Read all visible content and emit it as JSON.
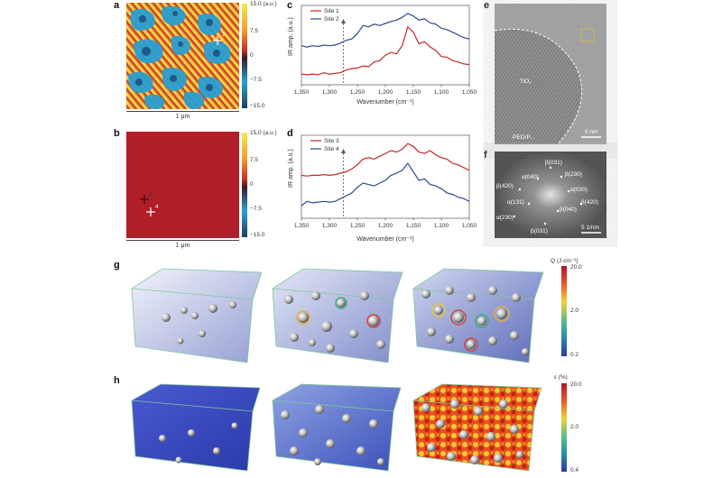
{
  "panels": {
    "a": {
      "label": "a",
      "scalebar": "1 μm",
      "colorbar": {
        "ticks": [
          "15.0 (a.u.)",
          "7.5",
          "0",
          "−7.5",
          "−15.0"
        ]
      },
      "marker": "1",
      "colors": [
        "#f7e84a",
        "#f0a030",
        "#d03020",
        "#3a1a2a",
        "#2aa0d0",
        "#1a4a7a"
      ]
    },
    "b": {
      "label": "b",
      "scalebar": "1 μm",
      "colorbar": {
        "ticks": [
          "15.0 (a.u.)",
          "7.5",
          "0",
          "−7.5",
          "−15.0"
        ]
      },
      "markers": [
        "3",
        "4"
      ],
      "fill": "#b01e28"
    },
    "c": {
      "label": "c",
      "chart_data": {
        "type": "line",
        "xlabel": "Wavenumber (cm⁻¹)",
        "ylabel": "IR amp. (a.u.)",
        "x_ticks": [
          "1,350",
          "1,300",
          "1,250",
          "1,200",
          "1,150",
          "1,100",
          "1,050"
        ],
        "xlim": [
          1350,
          1050
        ],
        "marker_x": 1275,
        "series": [
          {
            "name": "Site 1",
            "color": "#c0282c",
            "x": [
              1350,
              1340,
              1330,
              1320,
              1310,
              1300,
              1290,
              1280,
              1270,
              1260,
              1250,
              1240,
              1230,
              1220,
              1210,
              1200,
              1190,
              1180,
              1170,
              1160,
              1150,
              1140,
              1130,
              1120,
              1110,
              1100,
              1090,
              1080,
              1070,
              1060,
              1050
            ],
            "y": [
              0.1,
              0.09,
              0.1,
              0.09,
              0.12,
              0.1,
              0.11,
              0.12,
              0.16,
              0.18,
              0.19,
              0.22,
              0.21,
              0.28,
              0.3,
              0.38,
              0.42,
              0.4,
              0.52,
              0.8,
              0.72,
              0.55,
              0.58,
              0.5,
              0.45,
              0.36,
              0.35,
              0.3,
              0.28,
              0.25,
              0.24
            ]
          },
          {
            "name": "Site 2",
            "color": "#2c4a8c",
            "x": [
              1350,
              1340,
              1330,
              1320,
              1310,
              1300,
              1290,
              1280,
              1270,
              1260,
              1250,
              1240,
              1230,
              1220,
              1210,
              1200,
              1190,
              1180,
              1170,
              1160,
              1150,
              1140,
              1130,
              1120,
              1110,
              1100,
              1090,
              1080,
              1070,
              1060,
              1050
            ],
            "y": [
              0.52,
              0.5,
              0.52,
              0.51,
              0.53,
              0.52,
              0.53,
              0.56,
              0.6,
              0.62,
              0.7,
              0.82,
              0.8,
              0.84,
              0.82,
              0.85,
              0.88,
              0.9,
              0.94,
              1.0,
              0.96,
              0.9,
              0.92,
              0.86,
              0.84,
              0.78,
              0.76,
              0.72,
              0.68,
              0.64,
              0.62
            ]
          }
        ]
      }
    },
    "d": {
      "label": "d",
      "chart_data": {
        "type": "line",
        "xlabel": "Wavenumber (cm⁻¹)",
        "ylabel": "IR amp. (a.u.)",
        "x_ticks": [
          "1,350",
          "1,300",
          "1,250",
          "1,200",
          "1,150",
          "1,100",
          "1,050"
        ],
        "xlim": [
          1350,
          1050
        ],
        "marker_x": 1275,
        "series": [
          {
            "name": "Site 3",
            "color": "#c0282c",
            "x": [
              1350,
              1340,
              1330,
              1320,
              1310,
              1300,
              1290,
              1280,
              1270,
              1260,
              1250,
              1240,
              1230,
              1220,
              1210,
              1200,
              1190,
              1180,
              1170,
              1160,
              1150,
              1140,
              1130,
              1120,
              1110,
              1100,
              1090,
              1080,
              1070,
              1060,
              1050
            ],
            "y": [
              0.55,
              0.54,
              0.55,
              0.55,
              0.56,
              0.55,
              0.56,
              0.58,
              0.6,
              0.64,
              0.7,
              0.78,
              0.8,
              0.78,
              0.82,
              0.86,
              0.9,
              0.88,
              0.92,
              1.0,
              0.96,
              0.88,
              0.86,
              0.9,
              0.84,
              0.8,
              0.78,
              0.72,
              0.7,
              0.66,
              0.62
            ]
          },
          {
            "name": "Site 4",
            "color": "#2c4a8c",
            "x": [
              1350,
              1340,
              1330,
              1320,
              1310,
              1300,
              1290,
              1280,
              1270,
              1260,
              1250,
              1240,
              1230,
              1220,
              1210,
              1200,
              1190,
              1180,
              1170,
              1160,
              1150,
              1140,
              1130,
              1120,
              1110,
              1100,
              1090,
              1080,
              1070,
              1060,
              1050
            ],
            "y": [
              0.12,
              0.18,
              0.16,
              0.17,
              0.18,
              0.17,
              0.18,
              0.22,
              0.26,
              0.3,
              0.38,
              0.44,
              0.42,
              0.4,
              0.44,
              0.48,
              0.55,
              0.58,
              0.62,
              0.72,
              0.6,
              0.48,
              0.5,
              0.42,
              0.4,
              0.36,
              0.3,
              0.28,
              0.24,
              0.22,
              0.18
            ]
          }
        ]
      }
    },
    "e": {
      "label": "e",
      "region": "TiO₂",
      "sublabel": "PEO/P...",
      "scalebar": "5 nm"
    },
    "f": {
      "label": "f",
      "spots": [
        "β(031)",
        "β(230)",
        "α(040)",
        "β(420)",
        "α(020)",
        "α(131)",
        "β(040)",
        "α(230)",
        "β(031)",
        "β(420)"
      ],
      "scalebar": "5 1/nm"
    },
    "g": {
      "label": "g",
      "colorbar": {
        "title": "Q (J cm⁻³)",
        "ticks": [
          "20.0",
          "2.0",
          "0.2"
        ]
      }
    },
    "h": {
      "label": "h",
      "colorbar": {
        "title": "ε (%)",
        "ticks": [
          "20.0",
          "2.0",
          "0.4"
        ]
      }
    }
  }
}
